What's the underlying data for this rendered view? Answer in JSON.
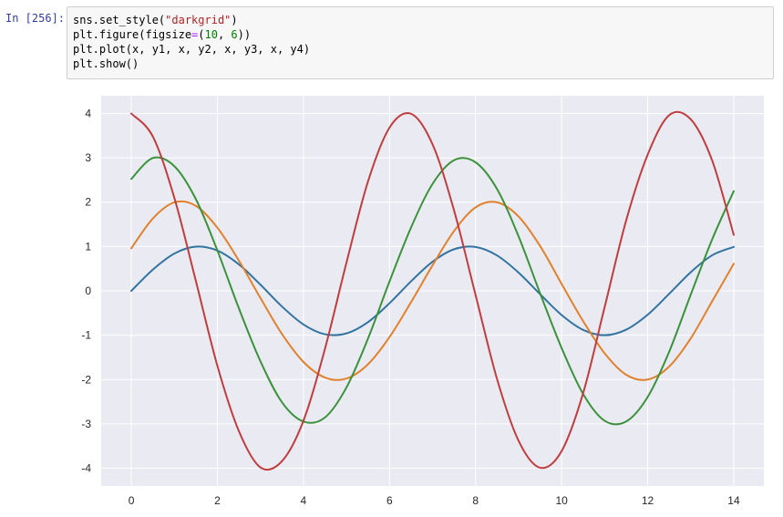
{
  "cell": {
    "prompt": "In [256]:",
    "code_lines": [
      [
        {
          "t": "sns.set_style(",
          "c": ""
        },
        {
          "t": "\"darkgrid\"",
          "c": "str"
        },
        {
          "t": ")",
          "c": ""
        }
      ],
      [
        {
          "t": "plt.figure(figsize",
          "c": ""
        },
        {
          "t": "=",
          "c": "op"
        },
        {
          "t": "(",
          "c": ""
        },
        {
          "t": "10",
          "c": "num"
        },
        {
          "t": ", ",
          "c": ""
        },
        {
          "t": "6",
          "c": "num"
        },
        {
          "t": "))",
          "c": ""
        }
      ],
      [
        {
          "t": "plt.plot(x, y1, x, y2, x, y3, x, y4)",
          "c": ""
        }
      ],
      [
        {
          "t": "plt.show()",
          "c": ""
        }
      ]
    ]
  },
  "chart_data": {
    "type": "line",
    "style": "seaborn darkgrid",
    "background_color": "#eaeaf2",
    "grid_color": "#ffffff",
    "grid": true,
    "xlim": [
      -0.7,
      14.7
    ],
    "ylim": [
      -4.4,
      4.4
    ],
    "xticks": [
      0,
      2,
      4,
      6,
      8,
      10,
      12,
      14
    ],
    "yticks": [
      -4,
      -3,
      -2,
      -1,
      0,
      1,
      2,
      3,
      4
    ],
    "xtick_labels": [
      "0",
      "2",
      "4",
      "6",
      "8",
      "10",
      "12",
      "14"
    ],
    "ytick_labels": [
      "-4",
      "-3",
      "-2",
      "-1",
      "0",
      "1",
      "2",
      "3",
      "4"
    ],
    "x": [
      0.0,
      0.5,
      1.0,
      1.5,
      2.0,
      2.5,
      3.0,
      3.5,
      4.0,
      4.5,
      5.0,
      5.5,
      6.0,
      6.5,
      7.0,
      7.5,
      8.0,
      8.5,
      9.0,
      9.5,
      10.0,
      10.5,
      11.0,
      11.5,
      12.0,
      12.5,
      13.0,
      13.5,
      14.0
    ],
    "series": [
      {
        "color": "#3274a1",
        "values": [
          0.0,
          0.479,
          0.841,
          0.997,
          0.909,
          0.598,
          0.141,
          -0.351,
          -0.757,
          -0.978,
          -0.959,
          -0.706,
          -0.279,
          0.215,
          0.657,
          0.938,
          0.989,
          0.798,
          0.412,
          -0.075,
          -0.544,
          -0.88,
          -1.0,
          -0.875,
          -0.537,
          -0.066,
          0.42,
          0.803,
          0.991
        ]
      },
      {
        "color": "#e1812c",
        "values": [
          0.959,
          1.631,
          1.995,
          1.918,
          1.425,
          0.683,
          -0.16,
          -0.97,
          -1.601,
          -1.954,
          -1.978,
          -1.655,
          -1.043,
          -0.256,
          0.574,
          1.348,
          1.883,
          1.997,
          1.677,
          1.011,
          0.157,
          -0.682,
          -1.408,
          -1.891,
          -1.999,
          -1.706,
          -1.072,
          -0.232,
          0.611
        ]
      },
      {
        "color": "#3a923a",
        "values": [
          2.524,
          2.995,
          2.812,
          2.069,
          0.911,
          -0.394,
          -1.586,
          -2.509,
          -2.946,
          -2.855,
          -2.178,
          -1.077,
          0.21,
          1.426,
          2.411,
          2.946,
          2.899,
          2.296,
          1.229,
          -0.056,
          -1.289,
          -2.325,
          -2.928,
          -2.945,
          -2.393,
          -1.372,
          -0.088,
          1.164,
          2.248
        ]
      },
      {
        "color": "#c03d3e",
        "values": [
          3.999,
          3.481,
          2.099,
          0.224,
          -1.688,
          -3.162,
          -3.98,
          -3.841,
          -2.929,
          -1.309,
          0.634,
          2.465,
          3.68,
          3.994,
          3.305,
          1.816,
          -0.092,
          -1.989,
          -3.38,
          -3.988,
          -3.613,
          -2.307,
          -0.366,
          1.587,
          3.071,
          3.962,
          3.868,
          2.936,
          1.262
        ]
      }
    ]
  }
}
